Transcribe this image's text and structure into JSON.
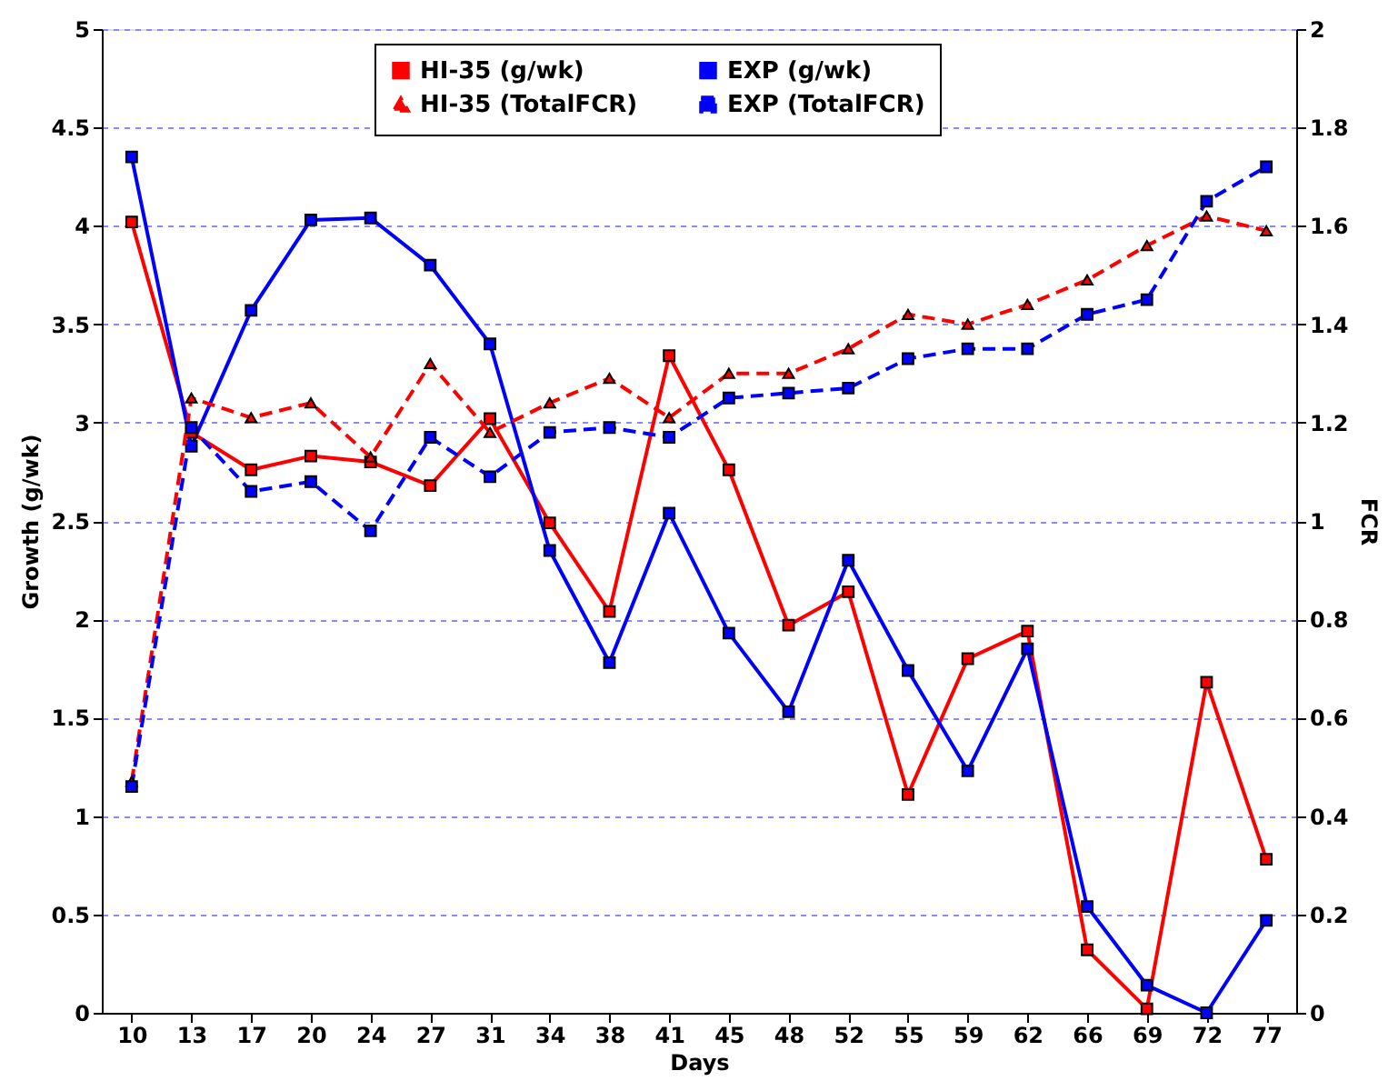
{
  "chart_data": {
    "type": "line",
    "xlabel": "Days",
    "ylabel": "Growth (g/wk)",
    "y2label": "FCR",
    "categories": [
      "10",
      "13",
      "17",
      "20",
      "24",
      "27",
      "31",
      "34",
      "38",
      "41",
      "45",
      "48",
      "52",
      "55",
      "59",
      "62",
      "66",
      "69",
      "72",
      "77"
    ],
    "series": [
      {
        "name": "HI-35 (g/wk)",
        "color": "#ff0000",
        "marker": "square",
        "line_style": "solid",
        "values": [
          4.02,
          2.95,
          2.76,
          2.83,
          2.8,
          2.68,
          3.02,
          2.49,
          2.04,
          3.34,
          2.76,
          1.97,
          2.14,
          1.11,
          1.8,
          1.94,
          0.32,
          0.02,
          1.68,
          0.78
        ]
      },
      {
        "name": "EXP (g/wk)",
        "color": "#0000ff",
        "marker": "square",
        "line_style": "solid",
        "values": [
          4.35,
          2.88,
          3.57,
          4.03,
          4.04,
          3.8,
          3.4,
          2.35,
          1.78,
          2.54,
          1.93,
          1.53,
          2.3,
          1.74,
          1.23,
          1.85,
          0.54,
          0.14,
          0.0,
          0.47
        ]
      },
      {
        "name": "HI-35 (TotalFCR)",
        "color": "#ff0000",
        "marker": "triangle",
        "line_style": "dashed",
        "axis": "y2",
        "values": [
          0.47,
          1.25,
          1.21,
          1.24,
          1.13,
          1.32,
          1.18,
          1.24,
          1.29,
          1.21,
          1.3,
          1.3,
          1.35,
          1.42,
          1.4,
          1.44,
          1.49,
          1.56,
          1.62,
          1.59
        ]
      },
      {
        "name": "EXP (TotalFCR)",
        "color": "#0000ff",
        "marker": "square",
        "line_style": "dashed",
        "axis": "y2",
        "values": [
          0.46,
          1.19,
          1.06,
          1.08,
          0.98,
          1.17,
          1.09,
          1.18,
          1.19,
          1.17,
          1.25,
          1.26,
          1.27,
          1.33,
          1.35,
          1.35,
          1.42,
          1.45,
          1.65,
          1.72
        ]
      }
    ],
    "ylim": [
      0,
      5
    ],
    "yticks": [
      0,
      0.5,
      1,
      1.5,
      2,
      2.5,
      3,
      3.5,
      4,
      4.5,
      5
    ],
    "y2lim": [
      0,
      2
    ],
    "y2ticks": [
      0,
      0.2,
      0.4,
      0.6,
      0.8,
      1,
      1.2,
      1.4,
      1.6,
      1.8,
      2
    ],
    "grid": "y",
    "legend": "top"
  }
}
